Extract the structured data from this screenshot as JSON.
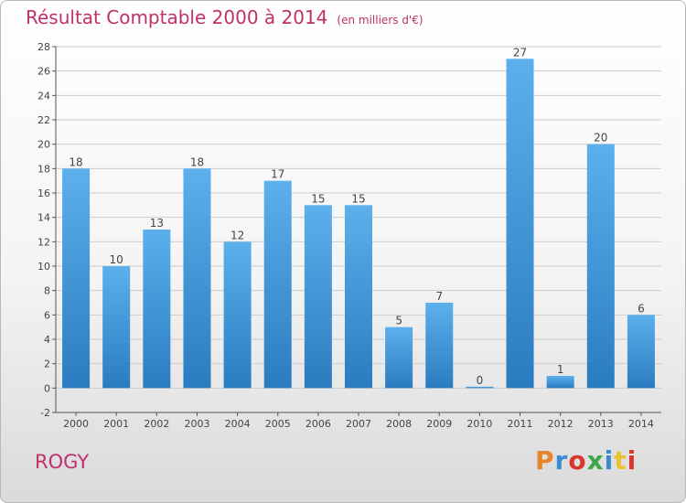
{
  "title": "Résultat Comptable 2000 à 2014",
  "subtitle": "(en milliers d'€)",
  "commune": "ROGY",
  "logo": {
    "text": "Proxiti",
    "colors": [
      "#e8842c",
      "#3a8ad0",
      "#d8382c",
      "#3aa84a",
      "#3a8ad0",
      "#e8c12c",
      "#d8382c"
    ]
  },
  "colors": {
    "title": "#c0306a",
    "bar_top": "#5cb0ec",
    "bar_bottom": "#2a7cc0",
    "grid": "#cccccc"
  },
  "chart_data": {
    "type": "bar",
    "categories": [
      "2000",
      "2001",
      "2002",
      "2003",
      "2004",
      "2005",
      "2006",
      "2007",
      "2008",
      "2009",
      "2010",
      "2011",
      "2012",
      "2013",
      "2014"
    ],
    "values": [
      18,
      10,
      13,
      18,
      12,
      17,
      15,
      15,
      5,
      7,
      0,
      27,
      1,
      20,
      6
    ],
    "ylim": [
      -2,
      28
    ],
    "yticks": [
      -2,
      0,
      2,
      4,
      6,
      8,
      10,
      12,
      14,
      16,
      18,
      20,
      22,
      24,
      26,
      28
    ],
    "grid": true,
    "title": "Résultat Comptable 2000 à 2014",
    "xlabel": "",
    "ylabel": ""
  }
}
